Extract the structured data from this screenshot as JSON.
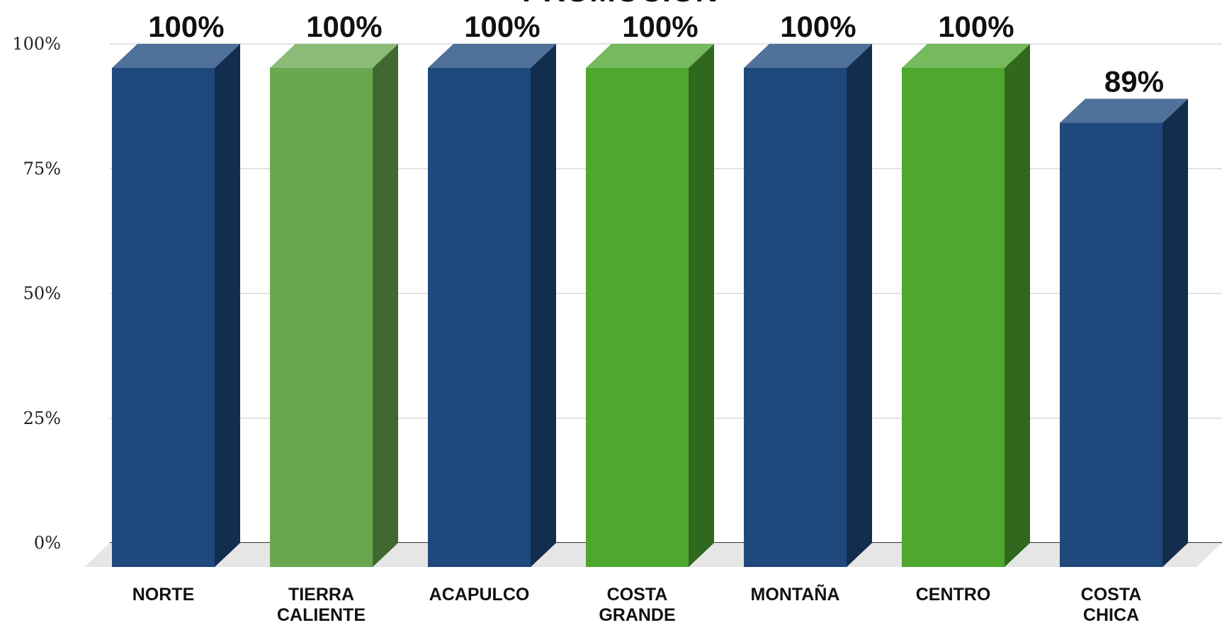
{
  "chart_data": {
    "type": "bar",
    "title": "PROMOCIÓN",
    "categories": [
      [
        "NORTE"
      ],
      [
        "TIERRA",
        "CALIENTE"
      ],
      [
        "ACAPULCO"
      ],
      [
        "COSTA",
        "GRANDE"
      ],
      [
        "MONTAÑA"
      ],
      [
        "CENTRO"
      ],
      [
        "COSTA",
        "CHICA"
      ]
    ],
    "values": [
      100,
      100,
      100,
      100,
      100,
      100,
      89
    ],
    "value_labels": [
      "100%",
      "100%",
      "100%",
      "100%",
      "100%",
      "100%",
      "89%"
    ],
    "ylim": [
      0,
      100
    ],
    "yticks": [
      0,
      25,
      50,
      75,
      100
    ],
    "ytick_labels": [
      "0%",
      "25%",
      "50%",
      "75%",
      "100%"
    ],
    "grid": true,
    "style": "3d-column",
    "bar_colors": [
      "#1f497d",
      "#6aa84f",
      "#1f497d",
      "#4ea72e",
      "#1f497d",
      "#4ea72e",
      "#1f497d"
    ]
  }
}
